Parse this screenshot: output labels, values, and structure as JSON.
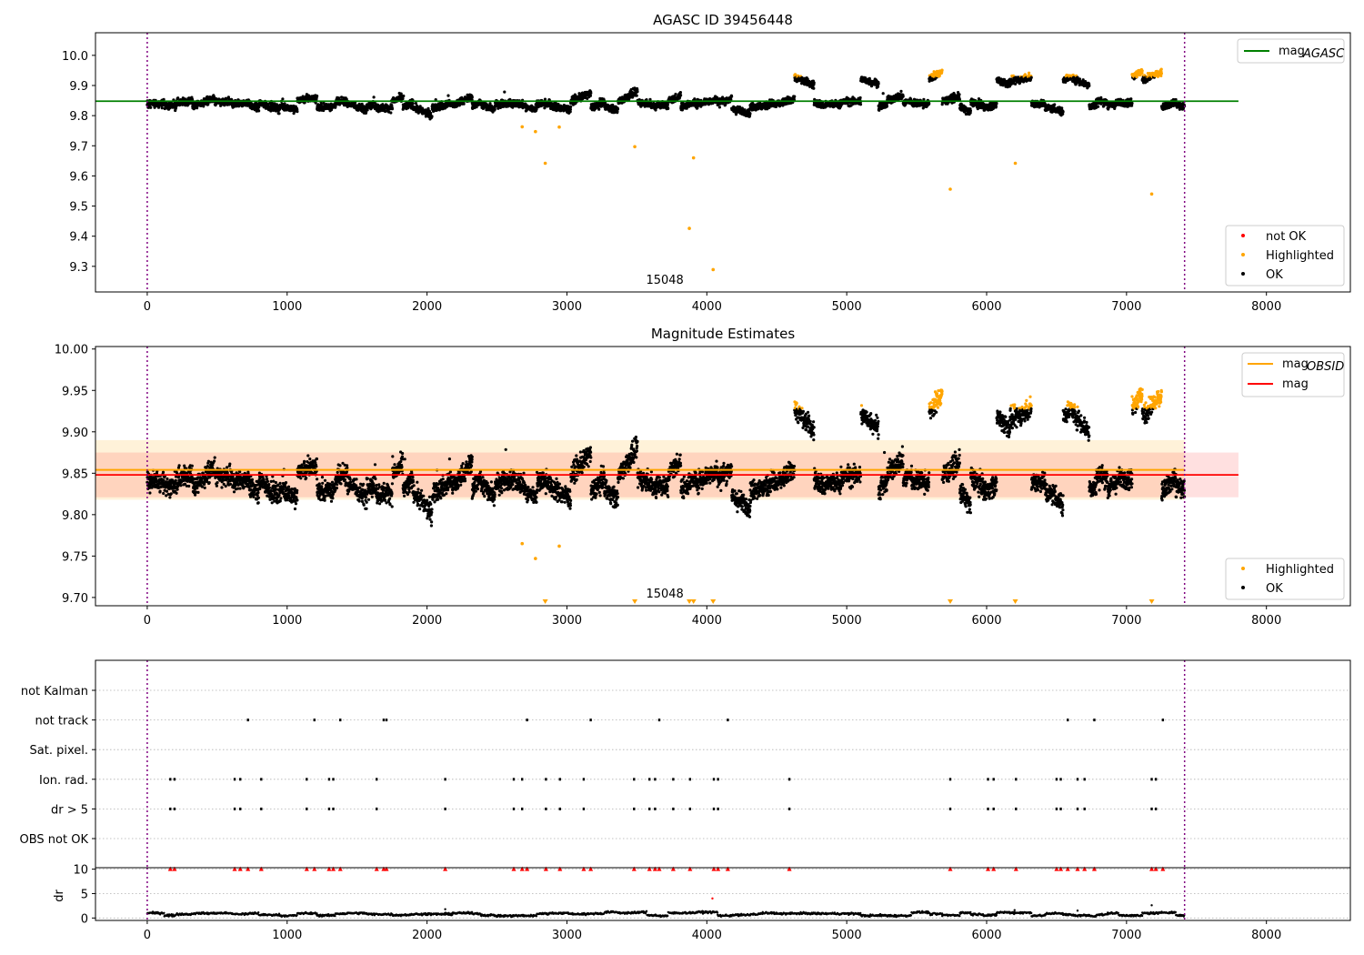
{
  "chart_data": [
    {
      "type": "scatter",
      "title": "AGASC ID 39456448",
      "xlim": [
        -370,
        8600
      ],
      "ylim": [
        9.215,
        10.075
      ],
      "xticks": [
        "0",
        "1000",
        "2000",
        "3000",
        "4000",
        "5000",
        "6000",
        "7000",
        "8000"
      ],
      "yticks": [
        "9.3",
        "9.4",
        "9.5",
        "9.6",
        "9.7",
        "9.8",
        "9.9",
        "10.0"
      ],
      "grid": false,
      "annotation": "15048",
      "obs_boundaries": [
        0,
        7415
      ],
      "mag_agasc": 9.848,
      "legend_lines": [
        {
          "name": "mag",
          "sub": "AGASC",
          "color": "#008000"
        }
      ],
      "legend_points": [
        "not OK",
        "Highlighted",
        "OK"
      ],
      "legend_position": [
        "upper right",
        "lower right"
      ],
      "colors": {
        "ok": "#000000",
        "highlighted": "#ffa500",
        "not_ok": "#ff0000",
        "boundary": "#800080"
      },
      "highlighted_outliers": [
        [
          2680,
          9.763
        ],
        [
          2775,
          9.747
        ],
        [
          2845,
          9.642
        ],
        [
          2945,
          9.762
        ],
        [
          3485,
          9.697
        ],
        [
          3875,
          9.426
        ],
        [
          3905,
          9.66
        ],
        [
          4045,
          9.289
        ],
        [
          5740,
          9.556
        ],
        [
          6205,
          9.642
        ],
        [
          7180,
          9.54
        ]
      ]
    },
    {
      "type": "scatter",
      "title": "Magnitude Estimates",
      "xlim": [
        -370,
        8600
      ],
      "ylim": [
        9.69,
        10.003
      ],
      "xticks": [
        "0",
        "1000",
        "2000",
        "3000",
        "4000",
        "5000",
        "6000",
        "7000",
        "8000"
      ],
      "yticks": [
        "9.70",
        "9.75",
        "9.80",
        "9.85",
        "9.90",
        "9.95",
        "10.00"
      ],
      "grid": false,
      "annotation": "15048",
      "mag_obsid": 9.854,
      "mag_obsid_band": [
        9.818,
        9.89
      ],
      "mag": 9.848,
      "mag_band": [
        9.821,
        9.875
      ],
      "legend_lines": [
        {
          "name": "mag",
          "sub": "OBSID",
          "color": "#ffa500"
        },
        {
          "name": "mag",
          "sub": "",
          "color": "#ff0000"
        }
      ],
      "legend_points": [
        "Highlighted",
        "OK"
      ],
      "legend_position": [
        "upper right",
        "lower right"
      ],
      "clipped_markers_x": [
        2845,
        3485,
        3875,
        3905,
        4045,
        5740,
        6205,
        7180
      ],
      "highlighted_outliers": [
        [
          2680,
          9.765
        ],
        [
          2775,
          9.747
        ],
        [
          2945,
          9.762
        ]
      ]
    },
    {
      "type": "scatter",
      "xlim": [
        -370,
        8600
      ],
      "xticks": [
        "0",
        "1000",
        "2000",
        "3000",
        "4000",
        "5000",
        "6000",
        "7000",
        "8000"
      ],
      "flag_labels": [
        "not Kalman",
        "not track",
        "Sat. pixel.",
        "Ion. rad.",
        "dr > 5",
        "OBS not OK"
      ],
      "flags": {
        "not track": [
          720,
          1195,
          1380,
          1690,
          1710,
          2715,
          3170,
          3660,
          4150,
          6580,
          6770,
          7260
        ],
        "Ion. rad.": [
          165,
          195,
          625,
          665,
          815,
          1140,
          1300,
          1330,
          1640,
          2130,
          2620,
          2680,
          2850,
          2950,
          3120,
          3480,
          3590,
          3630,
          3760,
          3880,
          4050,
          4080,
          4590,
          5740,
          6010,
          6050,
          6210,
          6500,
          6530,
          6650,
          6700,
          7180,
          7210
        ],
        "dr > 5": [
          165,
          195,
          625,
          665,
          815,
          1140,
          1300,
          1330,
          1640,
          2130,
          2620,
          2680,
          2850,
          2950,
          3120,
          3480,
          3590,
          3630,
          3760,
          3880,
          4050,
          4080,
          4590,
          5740,
          6010,
          6050,
          6210,
          6500,
          6530,
          6650,
          6700,
          7180,
          7210
        ]
      },
      "dr_yticks": [
        "0",
        "5",
        "10"
      ],
      "dr_ylabel": "dr",
      "dr_ylim": [
        -0.5,
        10.3
      ],
      "dr_outliers": [
        [
          4040,
          4.0
        ],
        [
          7180,
          2.6
        ],
        [
          2130,
          1.8
        ],
        [
          6200,
          1.6
        ],
        [
          6650,
          1.5
        ]
      ]
    }
  ]
}
